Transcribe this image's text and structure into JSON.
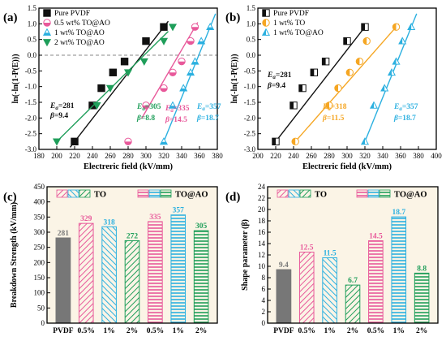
{
  "panel_labels": [
    "(a)",
    "(b)",
    "(c)",
    "(d)"
  ],
  "chart_data": [
    {
      "type": "scatter",
      "panel": "(a)",
      "xlabel": "Electreric field (kV/mm)",
      "ylabel": "ln(-ln(1-P(E)))",
      "xlim": [
        180,
        380
      ],
      "ylim": [
        -3.0,
        1.5
      ],
      "xticks": [
        180,
        200,
        220,
        240,
        260,
        280,
        300,
        320,
        340,
        360,
        380
      ],
      "yticks": [
        -3.0,
        -2.5,
        -2.0,
        -1.5,
        -1.0,
        -0.5,
        0.0,
        0.5,
        1.0,
        1.5
      ],
      "ytick_labels": [
        "-3.0",
        "-2.5",
        "-2.0",
        "-1.5",
        "-1.0",
        "-0.5",
        "0.0",
        "0.5",
        "1.0",
        "1.5"
      ],
      "grid": false,
      "legend_position": "top-left",
      "reference_line_y": 0,
      "series": [
        {
          "name": "Pure PVDF",
          "marker": "square",
          "color": "#111111",
          "x": [
            220,
            240,
            250,
            263,
            276,
            300,
            320
          ],
          "y": [
            -2.75,
            -1.6,
            -1.05,
            -0.55,
            -0.2,
            0.45,
            0.9
          ],
          "fit_x": [
            215,
            325
          ],
          "Ea": "281",
          "beta": "9.4"
        },
        {
          "name": "0.5 wt% TO@AO",
          "marker": "circle",
          "color": "#e8589a",
          "x": [
            280,
            300,
            320,
            330,
            340,
            350,
            355
          ],
          "y": [
            -2.75,
            -1.6,
            -1.05,
            -0.55,
            -0.2,
            0.45,
            0.9
          ],
          "fit_x": [
            295,
            358
          ],
          "Ea": "335",
          "beta": "14.5"
        },
        {
          "name": "1 wt% TO@AO",
          "marker": "triangle-up",
          "color": "#2bb0e0",
          "x": [
            320,
            330,
            342,
            350,
            355,
            362,
            372
          ],
          "y": [
            -2.75,
            -1.6,
            -1.05,
            -0.55,
            -0.2,
            0.45,
            0.9
          ],
          "fit_x": [
            320,
            378
          ],
          "Ea": "357",
          "beta": "18.7"
        },
        {
          "name": "2 wt% TO@AO",
          "marker": "triangle-down",
          "color": "#1f9e5a",
          "x": [
            200,
            245,
            260,
            280,
            298,
            320,
            330
          ],
          "y": [
            -2.75,
            -1.6,
            -1.05,
            -0.55,
            -0.2,
            0.45,
            0.9
          ],
          "fit_x": [
            200,
            325
          ],
          "Ea": "305",
          "beta": "8.8"
        }
      ],
      "annotations": [
        {
          "text": "E",
          "sub": "a",
          "value": "=281",
          "color": "#111111"
        },
        {
          "text": "β",
          "value": "=9.4",
          "color": "#111111"
        },
        {
          "text": "E",
          "sub": "a",
          "value": "=305",
          "color": "#1f9e5a"
        },
        {
          "text": "β",
          "value": "=8.8",
          "color": "#1f9e5a"
        },
        {
          "text": "E",
          "sub": "a",
          "value": "=335",
          "color": "#e8589a"
        },
        {
          "text": "β",
          "value": "=14.5",
          "color": "#e8589a"
        },
        {
          "text": "E",
          "sub": "a",
          "value": "=357",
          "color": "#2bb0e0"
        },
        {
          "text": "β",
          "value": "=18.7",
          "color": "#2bb0e0"
        }
      ]
    },
    {
      "type": "scatter",
      "panel": "(b)",
      "xlabel": "Electreric field (kV/mm)",
      "ylabel": "ln(-ln(1-P(E)))",
      "xlim": [
        200,
        400
      ],
      "ylim": [
        -3.0,
        1.5
      ],
      "xticks": [
        200,
        220,
        240,
        260,
        280,
        300,
        320,
        340,
        360,
        380,
        400
      ],
      "yticks": [
        -3.0,
        -2.5,
        -2.0,
        -1.5,
        -1.0,
        -0.5,
        0.0,
        0.5,
        1.0,
        1.5
      ],
      "ytick_labels": [
        "-3.0",
        "-2.5",
        "-2.0",
        "-1.5",
        "-1.0",
        "-0.5",
        "0.0",
        "0.5",
        "1.0",
        "1.5"
      ],
      "grid": false,
      "legend_position": "top-left",
      "series": [
        {
          "name": "Pure PVDF",
          "marker": "square-half",
          "color": "#111111",
          "x": [
            220,
            240,
            250,
            263,
            276,
            300,
            320
          ],
          "y": [
            -2.75,
            -1.6,
            -1.05,
            -0.55,
            -0.2,
            0.45,
            0.9
          ],
          "fit_x": [
            220,
            320
          ],
          "Ea": "281",
          "beta": "9.4"
        },
        {
          "name": "1 wt% TO",
          "marker": "circle-half",
          "color": "#f5a623",
          "x": [
            242,
            280,
            290,
            303,
            314,
            322,
            355
          ],
          "y": [
            -2.75,
            -1.6,
            -1.05,
            -0.55,
            -0.2,
            0.45,
            0.9
          ],
          "fit_x": [
            242,
            358
          ],
          "Ea": "318",
          "beta": "11.5"
        },
        {
          "name": "1 wt% TO@AO",
          "marker": "triangle-half",
          "color": "#2bb0e0",
          "x": [
            320,
            330,
            342,
            350,
            355,
            362,
            372
          ],
          "y": [
            -2.75,
            -1.6,
            -1.05,
            -0.55,
            -0.2,
            0.45,
            0.9
          ],
          "fit_x": [
            320,
            378
          ],
          "Ea": "357",
          "beta": "18.7"
        }
      ],
      "annotations": [
        {
          "text": "E",
          "sub": "a",
          "value": "=281",
          "color": "#111111"
        },
        {
          "text": "β",
          "value": "=9.4",
          "color": "#111111"
        },
        {
          "text": "E",
          "sub": "a",
          "value": "=318",
          "color": "#f5a623"
        },
        {
          "text": "β",
          "value": "=11.5",
          "color": "#f5a623"
        },
        {
          "text": "E",
          "sub": "a",
          "value": "=357",
          "color": "#2bb0e0"
        },
        {
          "text": "β",
          "value": "=18.7",
          "color": "#2bb0e0"
        }
      ]
    },
    {
      "type": "bar",
      "panel": "(c)",
      "ylabel": "Breakdown Strength (kV/mm)",
      "ylim": [
        0,
        450
      ],
      "yticks": [
        0,
        50,
        100,
        150,
        200,
        250,
        300,
        350,
        400,
        450
      ],
      "categories": [
        "PVDF",
        "0.5%",
        "1%",
        "2%",
        "0.5%",
        "1%",
        "2%"
      ],
      "values": [
        281,
        329,
        318,
        272,
        335,
        357,
        305
      ],
      "value_labels": [
        "281",
        "329",
        "318",
        "272",
        "335",
        "357",
        "305"
      ],
      "bar_colors": [
        "#777777",
        "#e8589a",
        "#2bb0e0",
        "#1f9e5a",
        "#e8589a",
        "#2bb0e0",
        "#1f9e5a"
      ],
      "bar_patterns": [
        "solid",
        "diag-right",
        "diag-left",
        "diag-right",
        "horizontal",
        "horizontal",
        "horizontal"
      ],
      "group_legend": [
        "TO",
        "TO@AO"
      ],
      "legend_position": "top",
      "background": "#fbf4e6"
    },
    {
      "type": "bar",
      "panel": "(d)",
      "ylabel": "Shape parameter (β)",
      "ylim": [
        0,
        24
      ],
      "yticks": [
        0,
        2,
        4,
        6,
        8,
        10,
        12,
        14,
        16,
        18,
        20,
        22,
        24
      ],
      "categories": [
        "PVDF",
        "0.5%",
        "1%",
        "2%",
        "0.5%",
        "1%",
        "2%"
      ],
      "values": [
        9.4,
        12.5,
        11.5,
        6.7,
        14.5,
        18.7,
        8.8
      ],
      "value_labels": [
        "9.4",
        "12.5",
        "11.5",
        "6.7",
        "14.5",
        "18.7",
        "8.8"
      ],
      "bar_colors": [
        "#777777",
        "#e8589a",
        "#2bb0e0",
        "#1f9e5a",
        "#e8589a",
        "#2bb0e0",
        "#1f9e5a"
      ],
      "bar_patterns": [
        "solid",
        "diag-right",
        "diag-left",
        "diag-right",
        "horizontal",
        "horizontal",
        "horizontal"
      ],
      "group_legend": [
        "TO",
        "TO@AO"
      ],
      "legend_position": "top",
      "background": "#fbf4e6"
    }
  ]
}
